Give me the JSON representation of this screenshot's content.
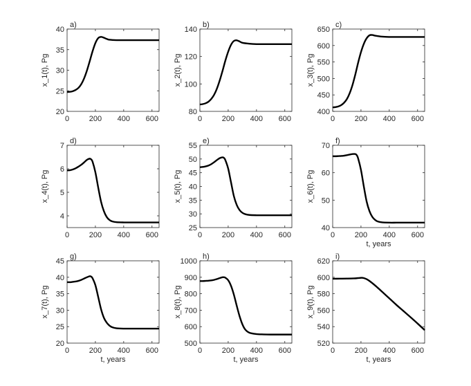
{
  "chart_data": [
    {
      "type": "line",
      "panel_label": "a)",
      "ylabel": "x_1(t), Pg",
      "xlabel": "",
      "xlim": [
        0,
        650
      ],
      "ylim": [
        20,
        40
      ],
      "xticks": [
        "0",
        "200",
        "400",
        "600"
      ],
      "yticks": [
        "20",
        "25",
        "30",
        "35",
        "40"
      ],
      "x": [
        0,
        20,
        40,
        60,
        80,
        100,
        120,
        140,
        160,
        180,
        200,
        220,
        240,
        260,
        280,
        300,
        350,
        400,
        450,
        500,
        550,
        600,
        650
      ],
      "values": [
        24.7,
        24.75,
        24.9,
        25.2,
        25.7,
        26.6,
        28.0,
        29.9,
        32.2,
        34.6,
        36.6,
        37.8,
        38.1,
        37.9,
        37.6,
        37.4,
        37.3,
        37.3,
        37.3,
        37.3,
        37.3,
        37.3,
        37.3
      ]
    },
    {
      "type": "line",
      "panel_label": "b)",
      "ylabel": "x_2(t), Pg",
      "xlabel": "",
      "xlim": [
        0,
        650
      ],
      "ylim": [
        80,
        140
      ],
      "xticks": [
        "0",
        "200",
        "400",
        "600"
      ],
      "yticks": [
        "80",
        "100",
        "120",
        "140"
      ],
      "x": [
        0,
        20,
        40,
        60,
        80,
        100,
        120,
        140,
        160,
        180,
        200,
        220,
        240,
        260,
        280,
        300,
        350,
        400,
        450,
        500,
        550,
        600,
        650
      ],
      "values": [
        85.0,
        85.3,
        85.9,
        87.0,
        89.0,
        92.0,
        96.5,
        102.5,
        109.5,
        117.0,
        123.5,
        128.5,
        131.3,
        131.8,
        131.0,
        130.0,
        129.3,
        129.0,
        129.0,
        129.0,
        129.0,
        129.0,
        129.0
      ]
    },
    {
      "type": "line",
      "panel_label": "c)",
      "ylabel": "x_3(t), Pg",
      "xlabel": "",
      "xlim": [
        0,
        650
      ],
      "ylim": [
        400,
        650
      ],
      "xticks": [
        "0",
        "200",
        "400",
        "600"
      ],
      "yticks": [
        "400",
        "450",
        "500",
        "550",
        "600",
        "650"
      ],
      "x": [
        0,
        20,
        40,
        60,
        80,
        100,
        120,
        140,
        160,
        180,
        200,
        220,
        240,
        260,
        280,
        300,
        350,
        400,
        450,
        500,
        550,
        600,
        650
      ],
      "values": [
        412,
        413,
        415,
        419,
        426,
        437,
        455,
        480,
        512,
        548,
        580,
        605,
        622,
        631,
        632,
        630,
        627,
        626,
        626,
        626,
        626,
        626,
        626
      ]
    },
    {
      "type": "line",
      "panel_label": "d)",
      "ylabel": "x_4(t), Pg",
      "xlabel": "",
      "xlim": [
        0,
        650
      ],
      "ylim": [
        3.5,
        7
      ],
      "xticks": [
        "0",
        "200",
        "400",
        "600"
      ],
      "yticks": [
        "4",
        "5",
        "6",
        "7"
      ],
      "x": [
        0,
        20,
        40,
        60,
        80,
        100,
        120,
        140,
        160,
        170,
        180,
        200,
        220,
        240,
        260,
        280,
        300,
        320,
        350,
        400,
        450,
        500,
        550,
        600,
        650
      ],
      "values": [
        5.93,
        5.94,
        5.97,
        6.02,
        6.09,
        6.17,
        6.27,
        6.38,
        6.43,
        6.4,
        6.3,
        5.85,
        5.2,
        4.6,
        4.2,
        3.95,
        3.82,
        3.76,
        3.73,
        3.72,
        3.72,
        3.72,
        3.72,
        3.72,
        3.72
      ]
    },
    {
      "type": "line",
      "panel_label": "e)",
      "ylabel": "x_5(t), Pg",
      "xlabel": "",
      "xlim": [
        0,
        650
      ],
      "ylim": [
        25,
        55
      ],
      "xticks": [
        "0",
        "200",
        "400",
        "600"
      ],
      "yticks": [
        "25",
        "30",
        "35",
        "40",
        "45",
        "50",
        "55"
      ],
      "x": [
        0,
        20,
        40,
        60,
        80,
        100,
        120,
        140,
        160,
        170,
        180,
        200,
        220,
        240,
        260,
        280,
        300,
        320,
        350,
        400,
        450,
        500,
        550,
        600,
        650
      ],
      "values": [
        47.0,
        47.1,
        47.3,
        47.6,
        48.1,
        48.8,
        49.6,
        50.3,
        50.6,
        50.4,
        49.6,
        46.5,
        41.5,
        36.5,
        33.3,
        31.4,
        30.4,
        29.9,
        29.6,
        29.5,
        29.5,
        29.5,
        29.5,
        29.5,
        29.5
      ]
    },
    {
      "type": "line",
      "panel_label": "f)",
      "ylabel": "x_6(t), Pg",
      "xlabel": "t, years",
      "xlim": [
        0,
        650
      ],
      "ylim": [
        40,
        70
      ],
      "xticks": [
        "0",
        "200",
        "400",
        "600"
      ],
      "yticks": [
        "40",
        "50",
        "60",
        "70"
      ],
      "x": [
        0,
        20,
        40,
        60,
        80,
        100,
        120,
        140,
        160,
        170,
        180,
        200,
        220,
        240,
        260,
        280,
        300,
        320,
        350,
        400,
        450,
        500,
        550,
        600,
        650
      ],
      "values": [
        66.0,
        66.0,
        66.05,
        66.1,
        66.2,
        66.4,
        66.6,
        66.8,
        66.8,
        66.4,
        65.2,
        61.0,
        55.0,
        49.5,
        46.0,
        43.9,
        42.8,
        42.2,
        41.9,
        41.8,
        41.8,
        41.8,
        41.8,
        41.8,
        41.8
      ]
    },
    {
      "type": "line",
      "panel_label": "g)",
      "ylabel": "x_7(t), Pg",
      "xlabel": "t, years",
      "xlim": [
        0,
        650
      ],
      "ylim": [
        20,
        45
      ],
      "xticks": [
        "0",
        "200",
        "400",
        "600"
      ],
      "yticks": [
        "20",
        "25",
        "30",
        "35",
        "40",
        "45"
      ],
      "x": [
        0,
        20,
        40,
        60,
        80,
        100,
        120,
        140,
        160,
        170,
        180,
        200,
        220,
        240,
        260,
        280,
        300,
        320,
        350,
        400,
        450,
        500,
        550,
        600,
        650
      ],
      "values": [
        38.5,
        38.5,
        38.6,
        38.7,
        38.9,
        39.2,
        39.6,
        40.0,
        40.3,
        40.2,
        39.7,
        37.6,
        34.0,
        30.3,
        27.7,
        26.2,
        25.3,
        24.8,
        24.5,
        24.4,
        24.4,
        24.4,
        24.4,
        24.4,
        24.4
      ]
    },
    {
      "type": "line",
      "panel_label": "h)",
      "ylabel": "x_8(t), Pg",
      "xlabel": "t, years",
      "xlim": [
        0,
        650
      ],
      "ylim": [
        500,
        1000
      ],
      "xticks": [
        "0",
        "200",
        "400",
        "600"
      ],
      "yticks": [
        "500",
        "600",
        "700",
        "800",
        "900",
        "1000"
      ],
      "x": [
        0,
        20,
        40,
        60,
        80,
        100,
        120,
        140,
        160,
        170,
        180,
        200,
        220,
        240,
        260,
        280,
        300,
        320,
        350,
        400,
        450,
        500,
        550,
        600,
        650
      ],
      "values": [
        877,
        877,
        878,
        879,
        881,
        884,
        889,
        895,
        900,
        900,
        897,
        882,
        848,
        795,
        728,
        665,
        615,
        583,
        563,
        555,
        553,
        552,
        552,
        552,
        552
      ]
    },
    {
      "type": "line",
      "panel_label": "i)",
      "ylabel": "x_9(t), Pg",
      "xlabel": "t, years",
      "xlim": [
        0,
        650
      ],
      "ylim": [
        520,
        620
      ],
      "xticks": [
        "0",
        "200",
        "400",
        "600"
      ],
      "yticks": [
        "520",
        "540",
        "560",
        "580",
        "600",
        "620"
      ],
      "x": [
        0,
        50,
        100,
        150,
        180,
        200,
        210,
        220,
        240,
        260,
        300,
        350,
        400,
        450,
        500,
        550,
        600,
        650
      ],
      "values": [
        598.2,
        598.3,
        598.4,
        598.6,
        599.0,
        599.3,
        599.3,
        599.0,
        597.7,
        595.5,
        590.0,
        582.3,
        574.4,
        566.5,
        559.0,
        551.5,
        543.8,
        535.8
      ]
    }
  ]
}
